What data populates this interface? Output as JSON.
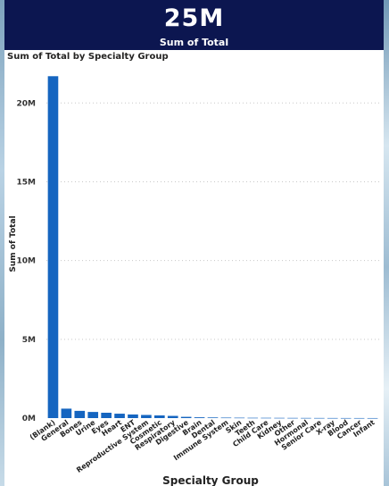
{
  "kpi": {
    "value": "25M",
    "label": "Sum of Total"
  },
  "chart_data": {
    "type": "bar",
    "title": "Sum of Total by Specialty Group",
    "xlabel": "Specialty Group",
    "ylabel": "Sum of Total",
    "ylim": [
      0,
      22000000
    ],
    "yticks": [
      0,
      5000000,
      10000000,
      15000000,
      20000000
    ],
    "ytick_labels": [
      "0M",
      "5M",
      "10M",
      "15M",
      "20M"
    ],
    "grid": true,
    "bar_color": "#1565c0",
    "categories": [
      "(Blank)",
      "General",
      "Bones",
      "Urine",
      "Eyes",
      "Heart",
      "ENT",
      "Reproductive System",
      "Cosmetic",
      "Respiratory",
      "Digestive",
      "Brain",
      "Dental",
      "Immune System",
      "Skin",
      "Teeth",
      "Child Care",
      "Kidney",
      "Other",
      "Hormonal",
      "Senior Care",
      "X-ray",
      "Blood",
      "Cancer",
      "Infant"
    ],
    "values": [
      21700000,
      600000,
      460000,
      390000,
      340000,
      280000,
      230000,
      200000,
      170000,
      140000,
      80000,
      50000,
      40000,
      30000,
      25000,
      20000,
      18000,
      15000,
      12000,
      10000,
      8000,
      6000,
      5000,
      4000,
      3000
    ]
  }
}
